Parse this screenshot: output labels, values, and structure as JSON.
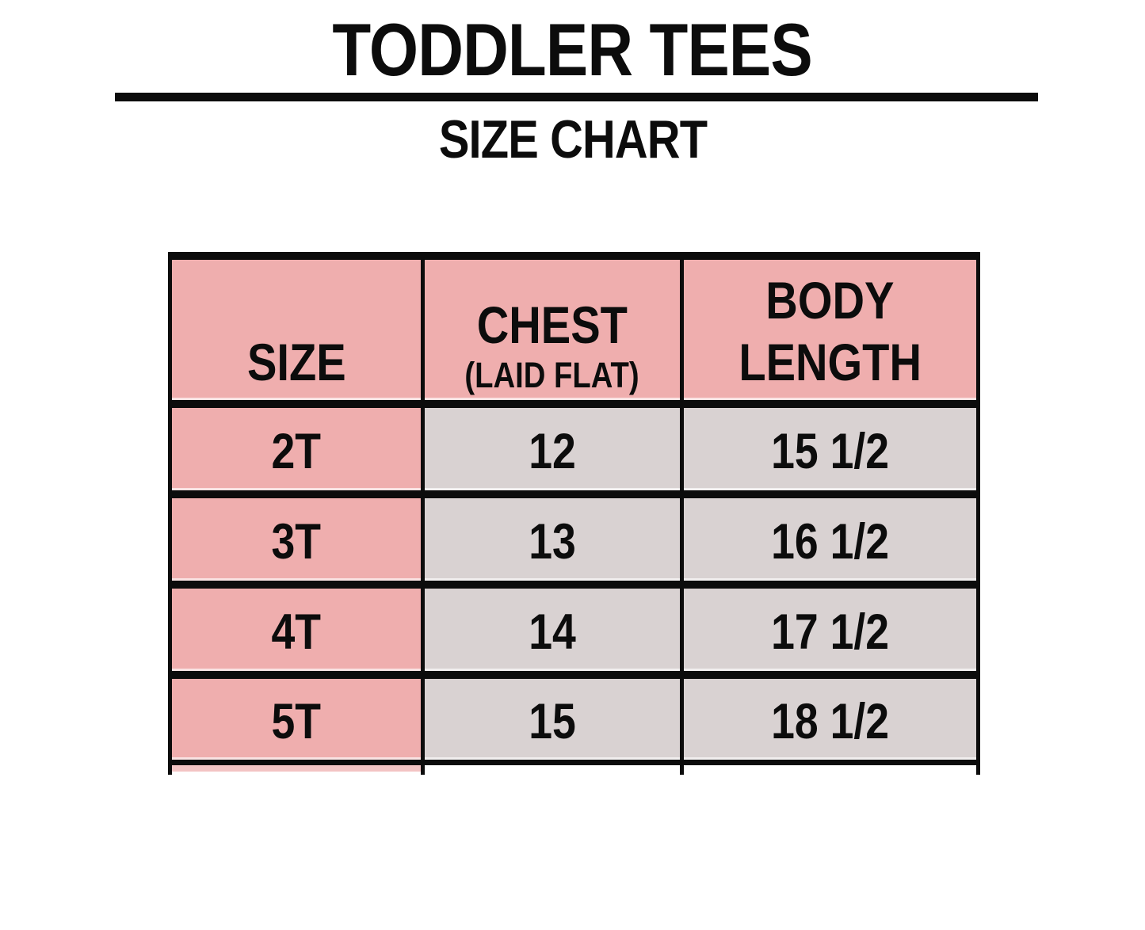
{
  "title": "TODDLER TEES",
  "subtitle": "SIZE CHART",
  "colors": {
    "header_and_size_column": "#efaeae",
    "data_cells": "#d9d2d2",
    "grid_lines": "#0c0c0c",
    "background": "#ffffff"
  },
  "chart_data": {
    "type": "table",
    "title": "TODDLER TEES",
    "subtitle": "SIZE CHART",
    "columns": [
      "SIZE",
      "CHEST (LAID FLAT)",
      "BODY LENGTH"
    ],
    "header": {
      "size": "SIZE",
      "chest_line1": "CHEST",
      "chest_line2": "(LAID FLAT)",
      "body_line1": "BODY",
      "body_line2": "LENGTH"
    },
    "rows": [
      {
        "size": "2T",
        "chest": "12",
        "body_length": "15 1/2"
      },
      {
        "size": "3T",
        "chest": "13",
        "body_length": "16 1/2"
      },
      {
        "size": "4T",
        "chest": "14",
        "body_length": "17 1/2"
      },
      {
        "size": "5T",
        "chest": "15",
        "body_length": "18 1/2"
      }
    ]
  }
}
